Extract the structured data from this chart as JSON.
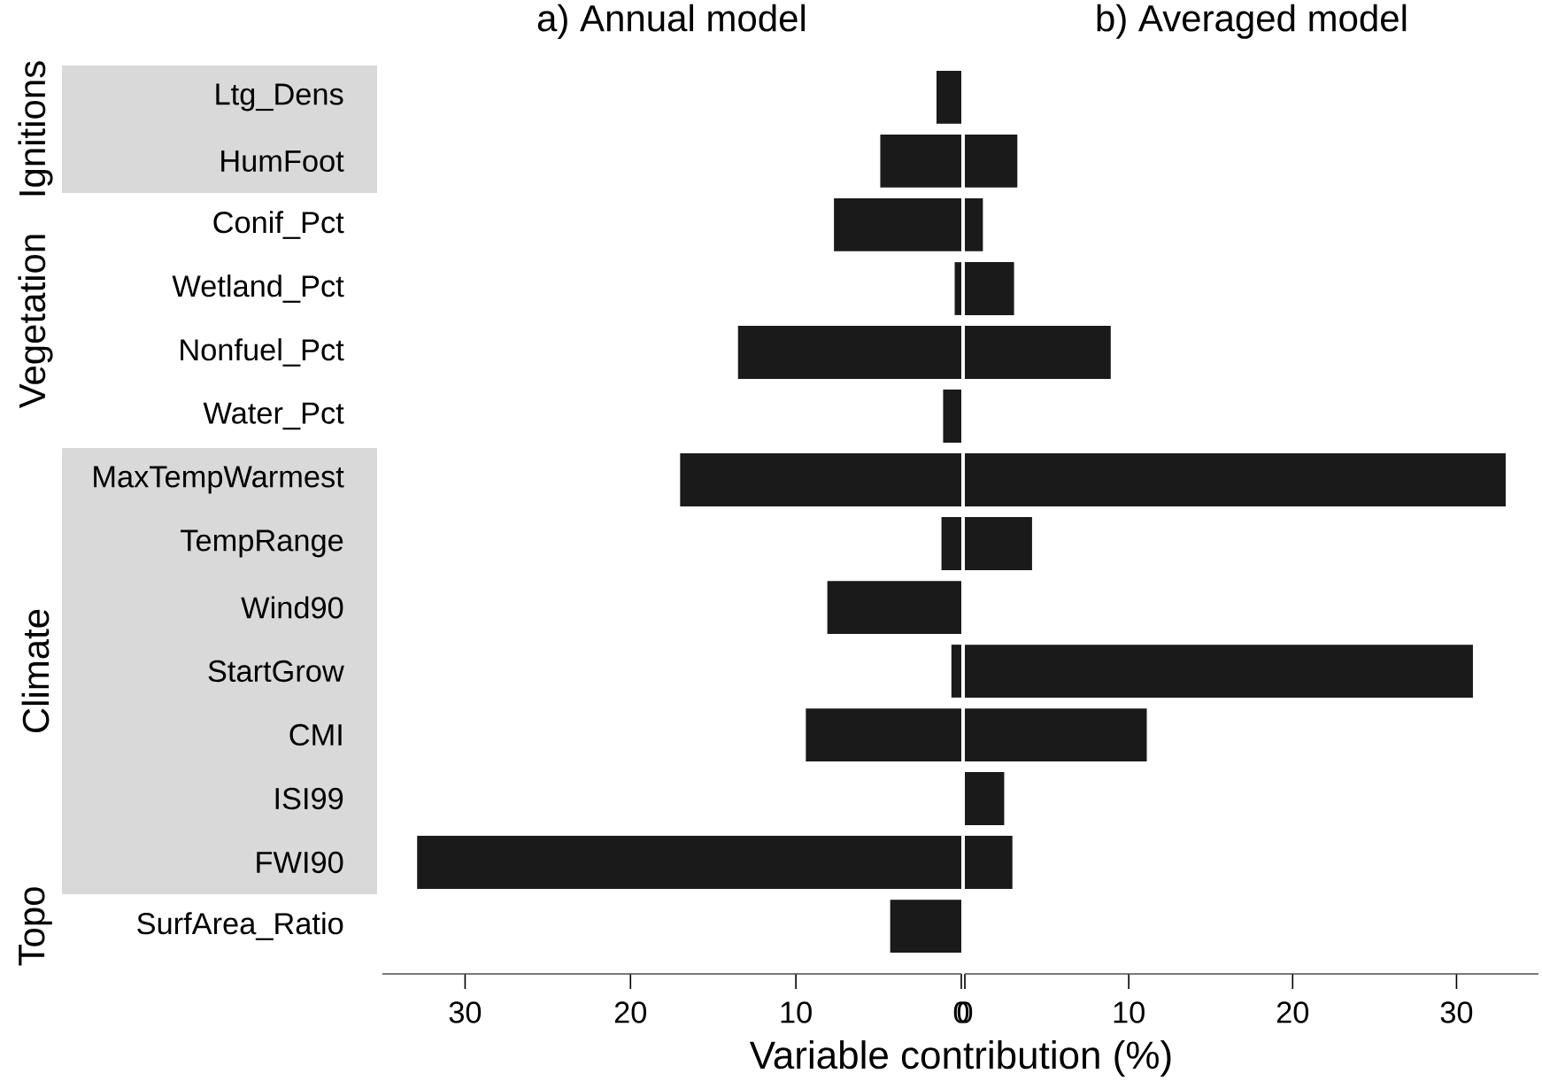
{
  "chart_data": [
    {
      "type": "bar",
      "orientation": "horizontal",
      "title": "a) Annual model",
      "xlabel": "Variable contribution (%)",
      "categories": [
        "Ltg_Dens",
        "HumFoot",
        "Conif_Pct",
        "Wetland_Pct",
        "Nonfuel_Pct",
        "Water_Pct",
        "MaxTempWarmest",
        "TempRange",
        "Wind90",
        "StartGrow",
        "CMI",
        "ISI99",
        "FWI90",
        "SurfArea_Ratio"
      ],
      "values": [
        1.5,
        4.9,
        7.7,
        0.4,
        13.5,
        1.1,
        17.0,
        1.2,
        8.1,
        0.6,
        9.4,
        0,
        32.9,
        4.3
      ],
      "color": "#1a1a1a",
      "xlim": [
        35,
        0
      ],
      "xticks": [
        30,
        20,
        10,
        0
      ],
      "annotations": [
        "Ignitions",
        "Vegetation",
        "Climate",
        "Topo"
      ]
    },
    {
      "type": "bar",
      "orientation": "horizontal",
      "title": "b) Averaged model",
      "categories": [
        null,
        null,
        null,
        null,
        null,
        null,
        null,
        null,
        null,
        null,
        null,
        null,
        null,
        null
      ],
      "values": [
        0,
        3.2,
        1.1,
        3.0,
        8.9,
        0,
        33.0,
        4.1,
        0,
        31.0,
        11.1,
        2.4,
        2.9,
        0
      ],
      "color": "#1a1a1a",
      "xlim": [
        0,
        35
      ],
      "xticks": [
        0,
        10,
        20,
        30
      ]
    }
  ]
}
